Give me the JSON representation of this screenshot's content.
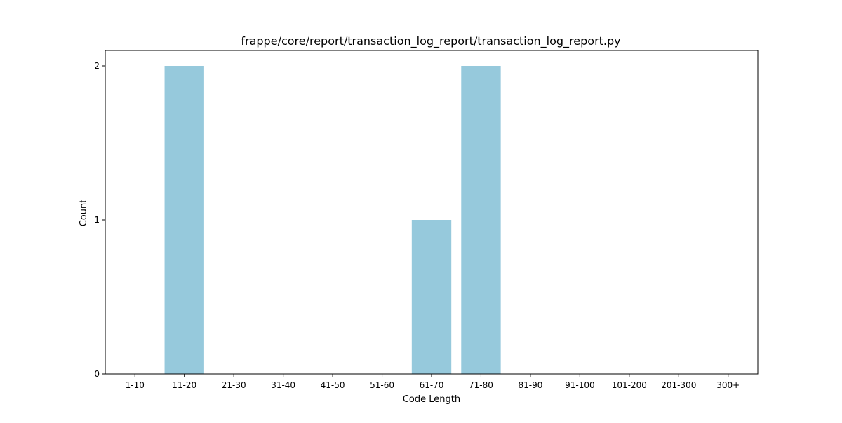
{
  "chart_data": {
    "type": "bar",
    "title": "frappe/core/report/transaction_log_report/transaction_log_report.py",
    "xlabel": "Code Length",
    "ylabel": "Count",
    "categories": [
      "1-10",
      "11-20",
      "21-30",
      "31-40",
      "41-50",
      "51-60",
      "61-70",
      "71-80",
      "81-90",
      "91-100",
      "101-200",
      "201-300",
      "300+"
    ],
    "values": [
      0,
      2,
      0,
      0,
      0,
      0,
      1,
      2,
      0,
      0,
      0,
      0,
      0
    ],
    "ylim": [
      0,
      2.1
    ],
    "yticks": [
      0,
      1,
      2
    ],
    "bar_color": "#96c9dc",
    "grid": false,
    "legend": "none"
  }
}
